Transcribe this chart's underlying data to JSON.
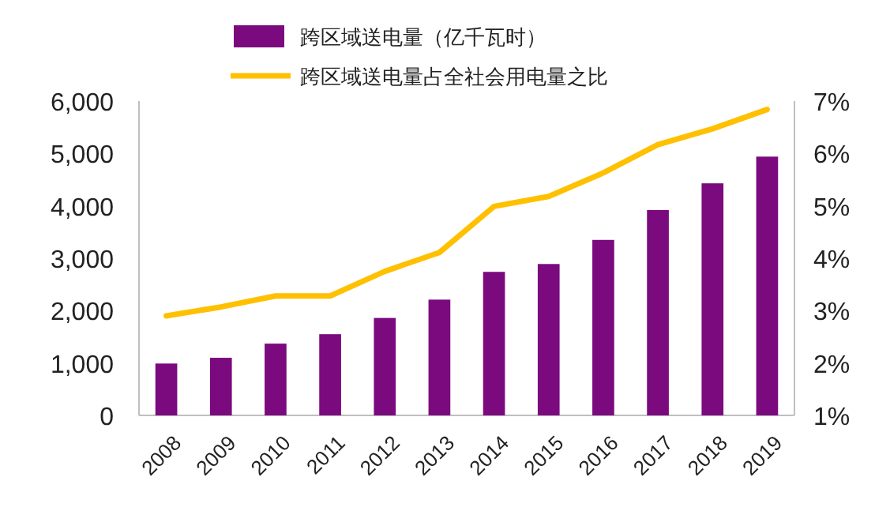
{
  "chart_data": {
    "type": "bar",
    "categories": [
      "2008",
      "2009",
      "2010",
      "2011",
      "2012",
      "2013",
      "2014",
      "2015",
      "2016",
      "2017",
      "2018",
      "2019"
    ],
    "series": [
      {
        "name": "跨区域送电量（亿千瓦时）",
        "color": "#7b0a7e",
        "values": [
          990,
          1100,
          1370,
          1550,
          1860,
          2210,
          2740,
          2890,
          3350,
          3920,
          4430,
          4940
        ]
      },
      {
        "name": "跨区域送电量占全社会用电量之比",
        "type": "line",
        "axis": "y2",
        "color": "#ffc000",
        "values": [
          2.9,
          3.07,
          3.28,
          3.28,
          3.75,
          4.11,
          4.99,
          5.18,
          5.63,
          6.17,
          6.47,
          6.84
        ]
      }
    ],
    "ylim": [
      0,
      6000
    ],
    "yticks": [
      0,
      {
        "value": 1000,
        "label": "1,000"
      },
      {
        "value": 2000,
        "label": "2,000"
      },
      {
        "value": 3000,
        "label": "3,000"
      },
      {
        "value": 4000,
        "label": "4,000"
      },
      {
        "value": 5000,
        "label": "5,000"
      },
      {
        "value": 6000,
        "label": "6,000"
      }
    ],
    "y2lim": [
      1,
      7
    ],
    "y2ticks": [
      {
        "value": 1,
        "label": "1%"
      },
      {
        "value": 2,
        "label": "2%"
      },
      {
        "value": 3,
        "label": "3%"
      },
      {
        "value": 4,
        "label": "4%"
      },
      {
        "value": 5,
        "label": "5%"
      },
      {
        "value": 6,
        "label": "6%"
      },
      {
        "value": 7,
        "label": "7%"
      }
    ],
    "legend": "top",
    "grid": false,
    "marker": "none",
    "line_style": "solid"
  }
}
